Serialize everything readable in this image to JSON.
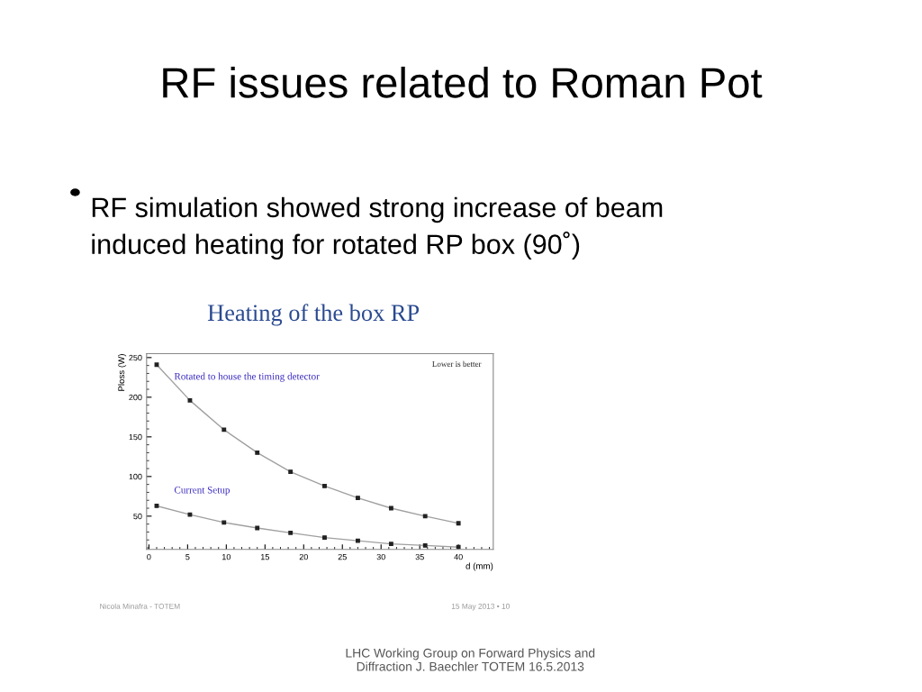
{
  "chart_data": {
    "type": "line",
    "title": "RF issues related to Roman Pot",
    "subtitle": "RF simulation showed strong increase of beam\ninduced heating for rotated RP box (90˚)",
    "xlabel": "d (mm)",
    "ylabel": "Ploss (W)",
    "annotations": [
      "Heating of the box RP",
      "Lower is better",
      "Nicola Minafra - TOTEM",
      "15 May 2013 • 10",
      "LHC Working Group on Forward Physics and\nDiffraction J. Baechler TOTEM 16.5.2013"
    ],
    "x": [
      1,
      5.3,
      9.7,
      14,
      18.3,
      22.7,
      27,
      31.3,
      35.7,
      40
    ],
    "series": [
      {
        "name": "Rotated to house the timing detector",
        "color": "#a0a0a0",
        "values": [
          241,
          196,
          159,
          130,
          106,
          88,
          73,
          60,
          50,
          41
        ]
      },
      {
        "name": "Current Setup",
        "color": "#a0a0a0",
        "values": [
          63,
          52,
          42,
          35,
          29,
          23,
          19,
          15,
          13,
          11
        ]
      }
    ],
    "xlim": [
      -0.3,
      44.5
    ],
    "ylim": [
      8,
      255
    ],
    "xticks": [
      0,
      5,
      10,
      15,
      20,
      25,
      30,
      35,
      40
    ],
    "yticks": [
      50,
      100,
      150,
      200,
      250
    ],
    "grid": false,
    "legend": false,
    "marker": "square",
    "line_style": "solid"
  }
}
